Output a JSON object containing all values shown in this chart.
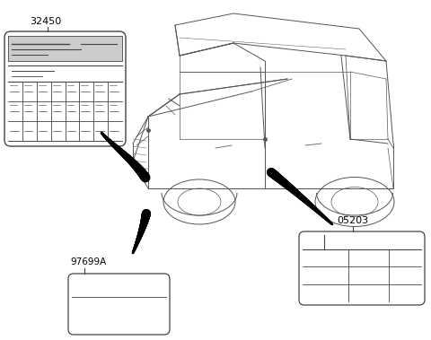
{
  "bg_color": "#ffffff",
  "line_color": "#444444",
  "title_color": "#000000",
  "label_32450": "32450",
  "label_97699A": "97699A",
  "label_05203": "05203",
  "car_color": "#555555",
  "figsize": [
    4.8,
    3.79
  ],
  "dpi": 100
}
